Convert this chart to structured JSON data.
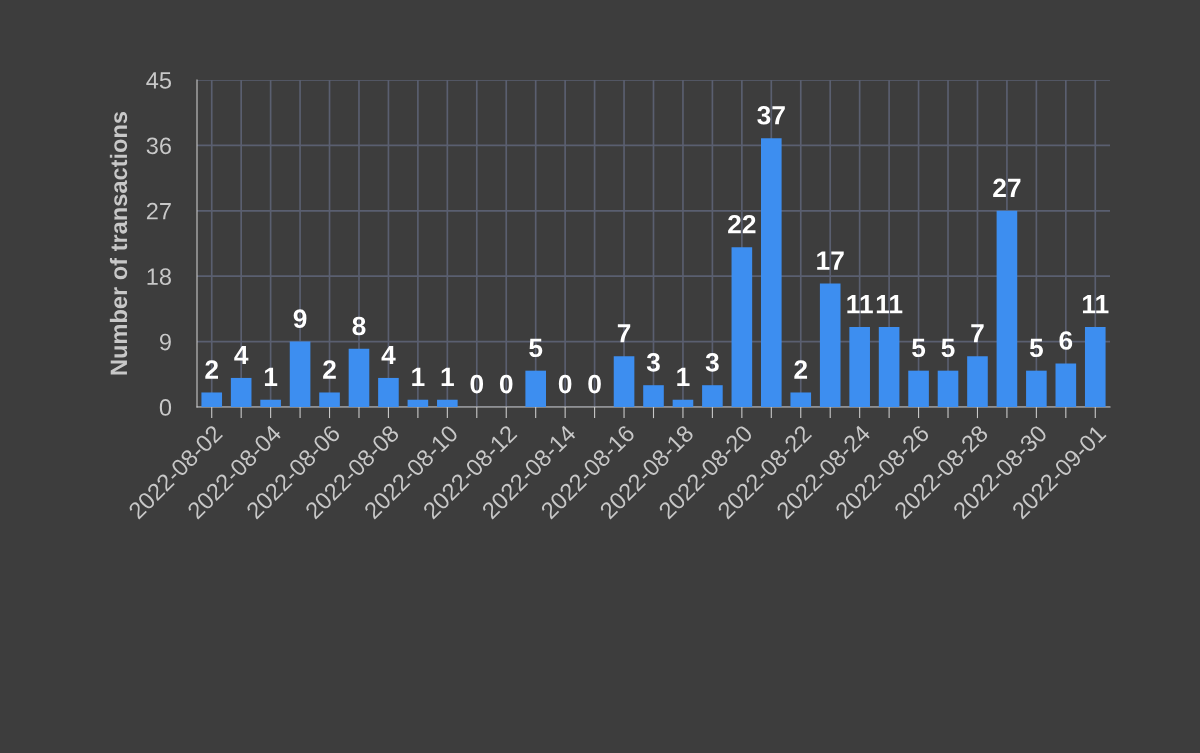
{
  "chart_data": {
    "type": "bar",
    "ylabel": "Number of transactions",
    "categories": [
      "2022-08-02",
      null,
      "2022-08-04",
      null,
      "2022-08-06",
      null,
      "2022-08-08",
      null,
      "2022-08-10",
      null,
      "2022-08-12",
      null,
      "2022-08-14",
      null,
      "2022-08-16",
      null,
      "2022-08-18",
      null,
      "2022-08-20",
      null,
      "2022-08-22",
      null,
      "2022-08-24",
      null,
      "2022-08-26",
      null,
      "2022-08-28",
      null,
      "2022-08-30",
      null,
      "2022-09-01"
    ],
    "values": [
      2,
      4,
      1,
      9,
      2,
      8,
      4,
      1,
      1,
      0,
      0,
      5,
      0,
      0,
      7,
      3,
      1,
      3,
      22,
      37,
      2,
      17,
      11,
      11,
      5,
      5,
      7,
      27,
      5,
      6,
      11
    ],
    "color": "#3d8ef0",
    "ylim": [
      0,
      45
    ],
    "yticks": [
      0,
      9,
      18,
      27,
      36,
      45
    ],
    "grid": true,
    "data_labels": true
  }
}
